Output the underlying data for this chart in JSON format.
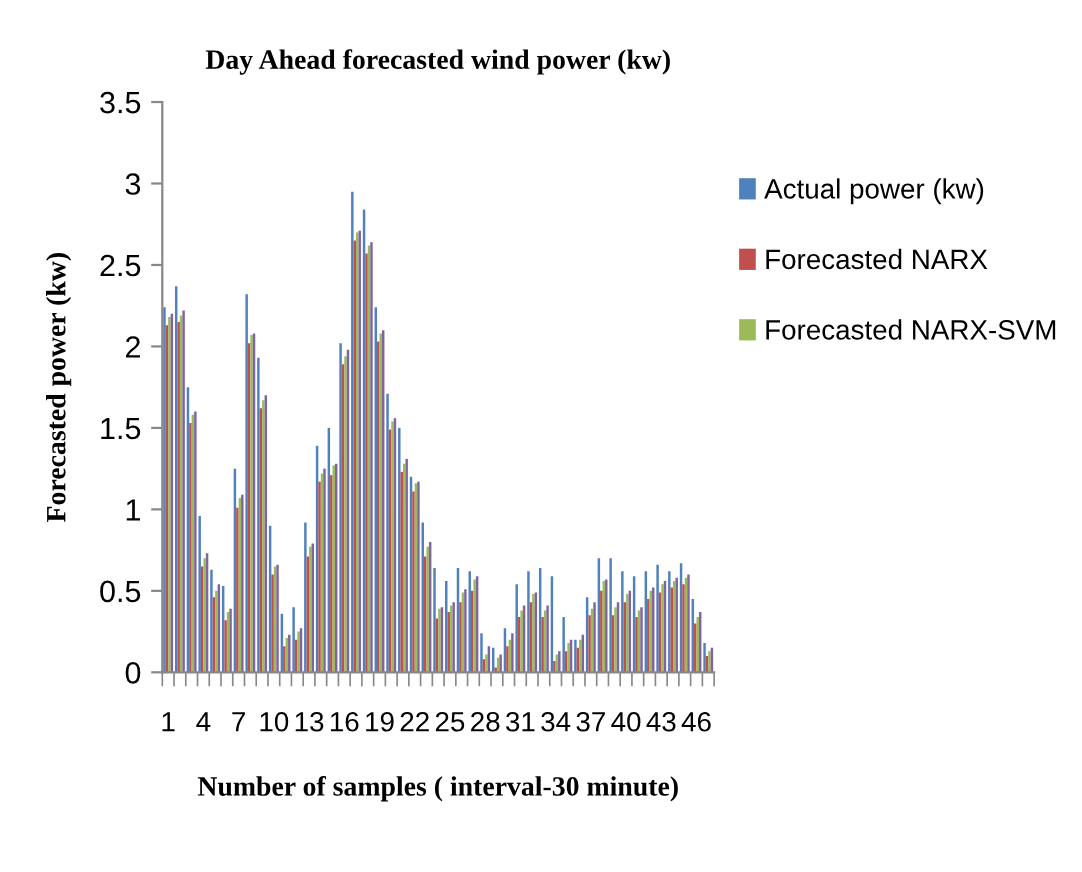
{
  "chart_data": {
    "type": "bar",
    "title": "Day Ahead forecasted wind power (kw)",
    "xlabel": "Number of samples ( interval-30 minute)",
    "ylabel": "Forecasted power (kw)",
    "categories": [
      "1",
      null,
      null,
      "4",
      null,
      null,
      "7",
      null,
      null,
      "10",
      null,
      null,
      "13",
      null,
      null,
      "16",
      null,
      null,
      "19",
      null,
      null,
      "22",
      null,
      null,
      "25",
      null,
      null,
      "28",
      null,
      null,
      "31",
      null,
      null,
      "34",
      null,
      null,
      "37",
      null,
      null,
      "40",
      null,
      null,
      "43",
      null,
      null,
      "46",
      null
    ],
    "series": [
      {
        "name": "Actual power (kw)",
        "color": "#4f81bd",
        "values": [
          2.24,
          2.37,
          1.75,
          0.96,
          0.63,
          0.53,
          1.25,
          2.32,
          1.93,
          0.9,
          0.36,
          0.4,
          0.92,
          1.39,
          1.5,
          2.02,
          2.95,
          2.84,
          2.24,
          1.71,
          1.5,
          1.2,
          0.92,
          0.64,
          0.56,
          0.64,
          0.62,
          0.24,
          0.15,
          0.27,
          0.54,
          0.62,
          0.64,
          0.59,
          0.34,
          0.2,
          0.46,
          0.7,
          0.7,
          0.62,
          0.59,
          0.62,
          0.66,
          0.62,
          0.67,
          0.45,
          0.18
        ]
      },
      {
        "name": "Forecasted NARX",
        "color": "#c0504d",
        "values": [
          2.13,
          2.15,
          1.53,
          0.65,
          0.46,
          0.32,
          1.01,
          2.02,
          1.62,
          0.6,
          0.16,
          0.2,
          0.71,
          1.17,
          1.21,
          1.89,
          2.65,
          2.57,
          2.03,
          1.49,
          1.23,
          1.11,
          0.71,
          0.33,
          0.37,
          0.43,
          0.5,
          0.08,
          0.03,
          0.16,
          0.34,
          0.43,
          0.34,
          0.07,
          0.13,
          0.15,
          0.35,
          0.5,
          0.35,
          0.43,
          0.34,
          0.45,
          0.49,
          0.52,
          0.54,
          0.3,
          0.1
        ]
      },
      {
        "name": "Forecasted NARX-SVM",
        "color": "#9bbb59",
        "values": [
          2.18,
          2.19,
          1.58,
          0.7,
          0.5,
          0.37,
          1.07,
          2.07,
          1.67,
          0.65,
          0.21,
          0.25,
          0.77,
          1.22,
          1.27,
          1.94,
          2.7,
          2.62,
          2.08,
          1.54,
          1.28,
          1.16,
          0.77,
          0.39,
          0.41,
          0.49,
          0.57,
          0.11,
          0.09,
          0.2,
          0.38,
          0.48,
          0.38,
          0.11,
          0.18,
          0.2,
          0.39,
          0.56,
          0.4,
          0.48,
          0.38,
          0.5,
          0.54,
          0.56,
          0.58,
          0.34,
          0.13
        ]
      },
      {
        "color": "#8064a2",
        "values": [
          2.2,
          2.22,
          1.6,
          0.73,
          0.54,
          0.39,
          1.09,
          2.08,
          1.7,
          0.66,
          0.23,
          0.27,
          0.79,
          1.25,
          1.28,
          1.98,
          2.71,
          2.64,
          2.1,
          1.56,
          1.31,
          1.17,
          0.8,
          0.4,
          0.43,
          0.51,
          0.59,
          0.16,
          0.11,
          0.24,
          0.41,
          0.49,
          0.41,
          0.13,
          0.2,
          0.23,
          0.43,
          0.57,
          0.43,
          0.5,
          0.4,
          0.52,
          0.56,
          0.58,
          0.6,
          0.37,
          0.15
        ]
      }
    ],
    "ylim": [
      0,
      3.5
    ],
    "yticks": [
      0,
      0.5,
      1,
      1.5,
      2,
      2.5,
      3,
      3.5
    ],
    "grid": false,
    "legend": "right"
  }
}
